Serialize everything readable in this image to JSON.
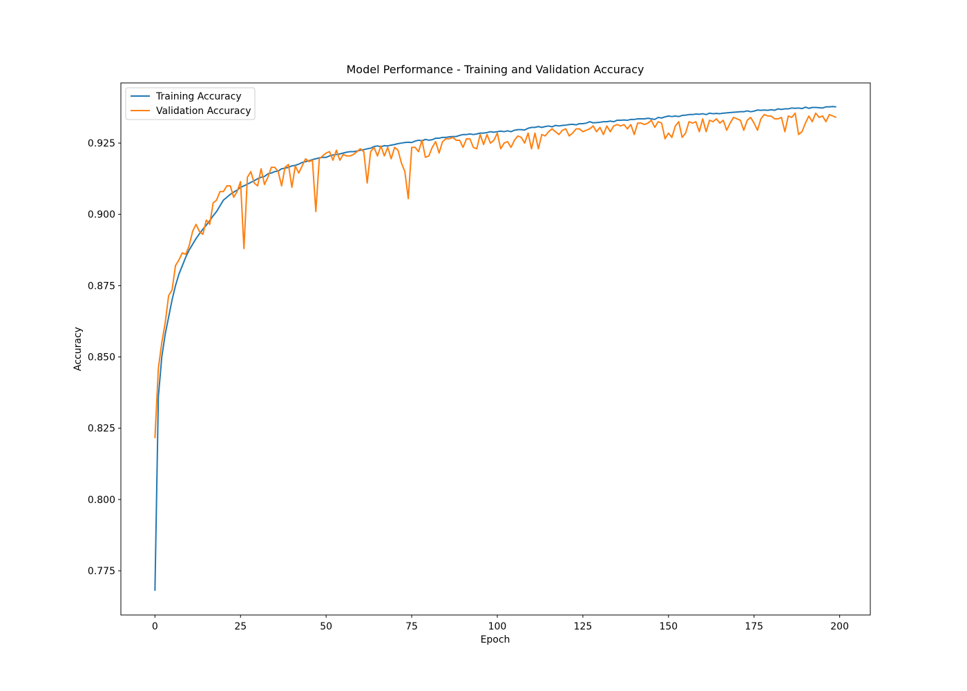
{
  "chart_data": {
    "type": "line",
    "title": "Model Performance - Training and Validation Accuracy",
    "x_label": "Epoch",
    "y_label": "Accuracy",
    "x": [
      0,
      1,
      2,
      3,
      4,
      5,
      6,
      7,
      8,
      9,
      10,
      11,
      12,
      13,
      14,
      15,
      16,
      17,
      18,
      19,
      20,
      21,
      22,
      23,
      24,
      25,
      26,
      27,
      28,
      29,
      30,
      31,
      32,
      33,
      34,
      35,
      36,
      37,
      38,
      39,
      40,
      41,
      42,
      43,
      44,
      45,
      46,
      47,
      48,
      49,
      50,
      51,
      52,
      53,
      54,
      55,
      56,
      57,
      58,
      59,
      60,
      61,
      62,
      63,
      64,
      65,
      66,
      67,
      68,
      69,
      70,
      71,
      72,
      73,
      74,
      75,
      76,
      77,
      78,
      79,
      80,
      81,
      82,
      83,
      84,
      85,
      86,
      87,
      88,
      89,
      90,
      91,
      92,
      93,
      94,
      95,
      96,
      97,
      98,
      99,
      100,
      101,
      102,
      103,
      104,
      105,
      106,
      107,
      108,
      109,
      110,
      111,
      112,
      113,
      114,
      115,
      116,
      117,
      118,
      119,
      120,
      121,
      122,
      123,
      124,
      125,
      126,
      127,
      128,
      129,
      130,
      131,
      132,
      133,
      134,
      135,
      136,
      137,
      138,
      139,
      140,
      141,
      142,
      143,
      144,
      145,
      146,
      147,
      148,
      149,
      150,
      151,
      152,
      153,
      154,
      155,
      156,
      157,
      158,
      159,
      160,
      161,
      162,
      163,
      164,
      165,
      166,
      167,
      168,
      169,
      170,
      171,
      172,
      173,
      174,
      175,
      176,
      177,
      178,
      179,
      180,
      181,
      182,
      183,
      184,
      185,
      186,
      187,
      188,
      189,
      190,
      191,
      192,
      193,
      194,
      195,
      196,
      197,
      198,
      199
    ],
    "series": [
      {
        "name": "Training Accuracy",
        "color": "#1f77b4",
        "values": [
          0.768,
          0.836,
          0.85,
          0.858,
          0.864,
          0.87,
          0.875,
          0.879,
          0.882,
          0.885,
          0.8875,
          0.8895,
          0.8915,
          0.8932,
          0.8948,
          0.8962,
          0.8978,
          0.8995,
          0.901,
          0.903,
          0.905,
          0.906,
          0.907,
          0.9078,
          0.9085,
          0.9095,
          0.91,
          0.9106,
          0.9112,
          0.9118,
          0.9125,
          0.913,
          0.9133,
          0.9142,
          0.9145,
          0.915,
          0.9152,
          0.916,
          0.9162,
          0.9165,
          0.917,
          0.9172,
          0.9176,
          0.9182,
          0.9185,
          0.9188,
          0.9192,
          0.9195,
          0.9198,
          0.92,
          0.92,
          0.9205,
          0.9208,
          0.921,
          0.9212,
          0.9215,
          0.9218,
          0.922,
          0.922,
          0.9222,
          0.9225,
          0.9227,
          0.923,
          0.9232,
          0.9238,
          0.924,
          0.9237,
          0.9241,
          0.924,
          0.9243,
          0.9245,
          0.9248,
          0.925,
          0.9252,
          0.9253,
          0.9252,
          0.9257,
          0.926,
          0.9258,
          0.9263,
          0.926,
          0.9262,
          0.9267,
          0.9267,
          0.927,
          0.927,
          0.9272,
          0.9273,
          0.9273,
          0.9277,
          0.928,
          0.928,
          0.9282,
          0.928,
          0.9282,
          0.9285,
          0.9285,
          0.9287,
          0.929,
          0.9288,
          0.929,
          0.9292,
          0.929,
          0.9293,
          0.929,
          0.9295,
          0.9297,
          0.9297,
          0.9296,
          0.9302,
          0.9305,
          0.9305,
          0.9308,
          0.9305,
          0.9308,
          0.931,
          0.9307,
          0.9312,
          0.931,
          0.9312,
          0.9313,
          0.9315,
          0.9316,
          0.9314,
          0.9318,
          0.9318,
          0.932,
          0.9325,
          0.9321,
          0.9322,
          0.9323,
          0.9325,
          0.9325,
          0.9327,
          0.9325,
          0.933,
          0.933,
          0.9331,
          0.933,
          0.9333,
          0.9333,
          0.9335,
          0.9335,
          0.9335,
          0.9337,
          0.9335,
          0.9333,
          0.934,
          0.9338,
          0.9342,
          0.9345,
          0.9343,
          0.9345,
          0.9343,
          0.9347,
          0.9348,
          0.935,
          0.935,
          0.9352,
          0.9351,
          0.9353,
          0.935,
          0.9355,
          0.9353,
          0.9354,
          0.9353,
          0.9355,
          0.9356,
          0.9357,
          0.9358,
          0.9359,
          0.936,
          0.936,
          0.9363,
          0.936,
          0.9362,
          0.9366,
          0.9365,
          0.9366,
          0.9365,
          0.9367,
          0.9365,
          0.937,
          0.9368,
          0.937,
          0.937,
          0.9373,
          0.9372,
          0.9373,
          0.9371,
          0.9376,
          0.9372,
          0.9375,
          0.9375,
          0.9374,
          0.9373,
          0.9377,
          0.9377,
          0.9378,
          0.9377
        ]
      },
      {
        "name": "Validation Accuracy",
        "color": "#ff7f0e",
        "values": [
          0.8215,
          0.846,
          0.855,
          0.862,
          0.8715,
          0.8735,
          0.882,
          0.884,
          0.8865,
          0.886,
          0.889,
          0.894,
          0.8965,
          0.894,
          0.893,
          0.898,
          0.8965,
          0.904,
          0.905,
          0.908,
          0.908,
          0.91,
          0.91,
          0.906,
          0.908,
          0.9115,
          0.888,
          0.913,
          0.915,
          0.911,
          0.91,
          0.916,
          0.9105,
          0.913,
          0.9165,
          0.9165,
          0.915,
          0.91,
          0.9165,
          0.9175,
          0.9095,
          0.917,
          0.9145,
          0.917,
          0.9195,
          0.9185,
          0.919,
          0.901,
          0.9195,
          0.9205,
          0.9215,
          0.922,
          0.919,
          0.9225,
          0.919,
          0.921,
          0.9205,
          0.9205,
          0.921,
          0.922,
          0.923,
          0.922,
          0.911,
          0.922,
          0.9235,
          0.9205,
          0.924,
          0.9205,
          0.9235,
          0.9195,
          0.9235,
          0.9225,
          0.918,
          0.915,
          0.9055,
          0.9235,
          0.9235,
          0.922,
          0.926,
          0.92,
          0.9205,
          0.9235,
          0.9255,
          0.9215,
          0.9255,
          0.9265,
          0.9265,
          0.927,
          0.926,
          0.926,
          0.9235,
          0.9265,
          0.9265,
          0.9235,
          0.923,
          0.928,
          0.9245,
          0.928,
          0.925,
          0.926,
          0.9285,
          0.923,
          0.925,
          0.9255,
          0.9235,
          0.926,
          0.9275,
          0.927,
          0.925,
          0.9285,
          0.923,
          0.9285,
          0.923,
          0.928,
          0.9275,
          0.929,
          0.93,
          0.929,
          0.928,
          0.9295,
          0.93,
          0.9275,
          0.9285,
          0.93,
          0.93,
          0.929,
          0.9295,
          0.93,
          0.931,
          0.929,
          0.9305,
          0.928,
          0.931,
          0.929,
          0.931,
          0.9315,
          0.931,
          0.9315,
          0.93,
          0.9315,
          0.928,
          0.932,
          0.932,
          0.9315,
          0.932,
          0.933,
          0.9305,
          0.9325,
          0.932,
          0.9265,
          0.9285,
          0.927,
          0.931,
          0.9325,
          0.927,
          0.9285,
          0.9325,
          0.932,
          0.9325,
          0.929,
          0.9335,
          0.929,
          0.933,
          0.9325,
          0.9335,
          0.932,
          0.933,
          0.9295,
          0.932,
          0.934,
          0.9335,
          0.933,
          0.9295,
          0.933,
          0.934,
          0.932,
          0.9295,
          0.9335,
          0.935,
          0.9345,
          0.9345,
          0.9335,
          0.9335,
          0.934,
          0.929,
          0.9345,
          0.934,
          0.9355,
          0.928,
          0.929,
          0.932,
          0.9345,
          0.9325,
          0.9355,
          0.934,
          0.9345,
          0.9325,
          0.935,
          0.9345,
          0.934
        ]
      }
    ],
    "xlim": [
      -9.95,
      208.95
    ],
    "ylim": [
      0.7595,
      0.9461
    ],
    "xticks": [
      0,
      25,
      50,
      75,
      100,
      125,
      150,
      175,
      200
    ],
    "yticks": [
      0.775,
      {
        "value": 0.8,
        "label": "0.800"
      },
      0.825,
      {
        "value": 0.85,
        "label": "0.850"
      },
      0.875,
      {
        "value": 0.9,
        "label": "0.900"
      },
      0.925
    ],
    "legend": "upper left",
    "grid": false
  }
}
